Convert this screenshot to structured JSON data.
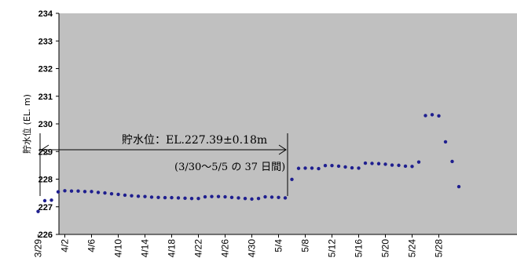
{
  "chart_data": {
    "type": "scatter",
    "title": "",
    "ylabel": "貯水位 (EL. m)",
    "xlabel": "",
    "ylim": [
      226,
      234
    ],
    "yticks": [
      226,
      227,
      228,
      229,
      230,
      231,
      232,
      233,
      234
    ],
    "xticks": [
      "3/29",
      "4/2",
      "4/6",
      "4/10",
      "4/14",
      "4/18",
      "4/22",
      "4/26",
      "4/30",
      "5/4",
      "5/8",
      "5/12",
      "5/16",
      "5/20",
      "5/24",
      "5/28"
    ],
    "grid": false,
    "plot_background": "#c0c0c0",
    "marker_color": "#1f1f8f",
    "series": [
      {
        "x": [
          "3/29",
          "3/30",
          "3/31",
          "4/1",
          "4/2",
          "4/3",
          "4/4",
          "4/5",
          "4/6",
          "4/7",
          "4/8",
          "4/9",
          "4/10",
          "4/11",
          "4/12",
          "4/13",
          "4/14",
          "4/15",
          "4/16",
          "4/17",
          "4/18",
          "4/19",
          "4/20",
          "4/21",
          "4/22",
          "4/23",
          "4/24",
          "4/25",
          "4/26",
          "4/27",
          "4/28",
          "4/29",
          "4/30",
          "5/1",
          "5/2",
          "5/3",
          "5/4",
          "5/5",
          "5/6",
          "5/7",
          "5/8",
          "5/9",
          "5/10",
          "5/11",
          "5/12",
          "5/13",
          "5/14",
          "5/15",
          "5/16",
          "5/17",
          "5/18",
          "5/19",
          "5/20",
          "5/21",
          "5/22",
          "5/23",
          "5/24",
          "5/25",
          "5/26",
          "5/27",
          "5/28",
          "5/29",
          "5/30",
          "5/31"
        ],
        "values": [
          226.83,
          227.22,
          227.24,
          227.54,
          227.58,
          227.57,
          227.57,
          227.55,
          227.55,
          227.52,
          227.5,
          227.47,
          227.45,
          227.42,
          227.4,
          227.38,
          227.37,
          227.35,
          227.34,
          227.33,
          227.33,
          227.32,
          227.31,
          227.3,
          227.3,
          227.36,
          227.37,
          227.37,
          227.36,
          227.34,
          227.32,
          227.3,
          227.28,
          227.3,
          227.36,
          227.35,
          227.34,
          227.32,
          227.99,
          228.39,
          228.4,
          228.4,
          228.38,
          228.49,
          228.49,
          228.47,
          228.44,
          228.41,
          228.4,
          228.58,
          228.57,
          228.56,
          228.54,
          228.51,
          228.5,
          228.47,
          228.46,
          228.62,
          230.3,
          230.33,
          230.29,
          229.35,
          228.64,
          227.73
        ]
      }
    ],
    "annotations": {
      "range_text": "貯水位：EL.227.39±0.18m",
      "period_text": "(3/30～5/5 の 37 日間)",
      "range_start": "3/30",
      "range_end": "5/5"
    }
  }
}
